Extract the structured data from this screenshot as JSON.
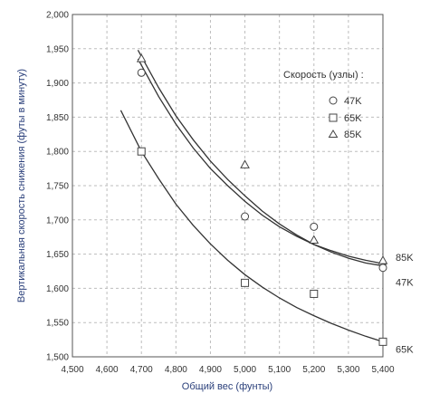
{
  "chart_data": {
    "type": "scatter",
    "xlabel": "Общий вес (фунты)",
    "ylabel": "Вертикальная скорость снижения (футы в минуту)",
    "xlim": [
      4500,
      5400
    ],
    "ylim": [
      1500,
      2000
    ],
    "x_ticks": [
      "4,500",
      "4,600",
      "4,700",
      "4,800",
      "4,900",
      "5,000",
      "5,100",
      "5,200",
      "5,300",
      "5,400"
    ],
    "y_ticks": [
      "1,500",
      "1,550",
      "1,600",
      "1,650",
      "1,700",
      "1,750",
      "1,800",
      "1,850",
      "1,900",
      "1,950",
      "2,000"
    ],
    "grid": true,
    "legend": {
      "title": "Скорость (узлы) :",
      "position": "right",
      "entries": [
        {
          "label": "47K",
          "marker": "circle"
        },
        {
          "label": "65K",
          "marker": "square"
        },
        {
          "label": "85K",
          "marker": "triangle"
        }
      ]
    },
    "series": [
      {
        "name": "47K",
        "marker": "circle",
        "end_label": "47K",
        "points": [
          [
            4700,
            1915
          ],
          [
            5000,
            1705
          ],
          [
            5200,
            1690
          ],
          [
            5400,
            1630
          ]
        ],
        "curve": [
          [
            4690,
            1935
          ],
          [
            4750,
            1880
          ],
          [
            4800,
            1840
          ],
          [
            4850,
            1805
          ],
          [
            4900,
            1775
          ],
          [
            4950,
            1750
          ],
          [
            5000,
            1727
          ],
          [
            5050,
            1707
          ],
          [
            5100,
            1690
          ],
          [
            5150,
            1676
          ],
          [
            5200,
            1664
          ],
          [
            5250,
            1655
          ],
          [
            5300,
            1647
          ],
          [
            5350,
            1641
          ],
          [
            5410,
            1635
          ]
        ]
      },
      {
        "name": "65K",
        "marker": "square",
        "end_label": "65K",
        "points": [
          [
            4700,
            1800
          ],
          [
            5000,
            1608
          ],
          [
            5200,
            1592
          ],
          [
            5400,
            1522
          ]
        ],
        "curve": [
          [
            4640,
            1860
          ],
          [
            4700,
            1800
          ],
          [
            4750,
            1760
          ],
          [
            4800,
            1723
          ],
          [
            4850,
            1692
          ],
          [
            4900,
            1665
          ],
          [
            4950,
            1641
          ],
          [
            5000,
            1620
          ],
          [
            5050,
            1602
          ],
          [
            5100,
            1586
          ],
          [
            5150,
            1572
          ],
          [
            5200,
            1560
          ],
          [
            5250,
            1549
          ],
          [
            5300,
            1539
          ],
          [
            5350,
            1530
          ],
          [
            5400,
            1522
          ]
        ]
      },
      {
        "name": "85K",
        "marker": "triangle",
        "end_label": "85K",
        "points": [
          [
            4700,
            1935
          ],
          [
            5000,
            1780
          ],
          [
            5200,
            1670
          ],
          [
            5400,
            1640
          ]
        ],
        "curve": [
          [
            4690,
            1948
          ],
          [
            4750,
            1893
          ],
          [
            4800,
            1852
          ],
          [
            4850,
            1817
          ],
          [
            4900,
            1786
          ],
          [
            4950,
            1759
          ],
          [
            5000,
            1735
          ],
          [
            5050,
            1713
          ],
          [
            5100,
            1694
          ],
          [
            5150,
            1678
          ],
          [
            5200,
            1664
          ],
          [
            5250,
            1653
          ],
          [
            5300,
            1644
          ],
          [
            5350,
            1637
          ],
          [
            5410,
            1632
          ]
        ]
      }
    ]
  }
}
